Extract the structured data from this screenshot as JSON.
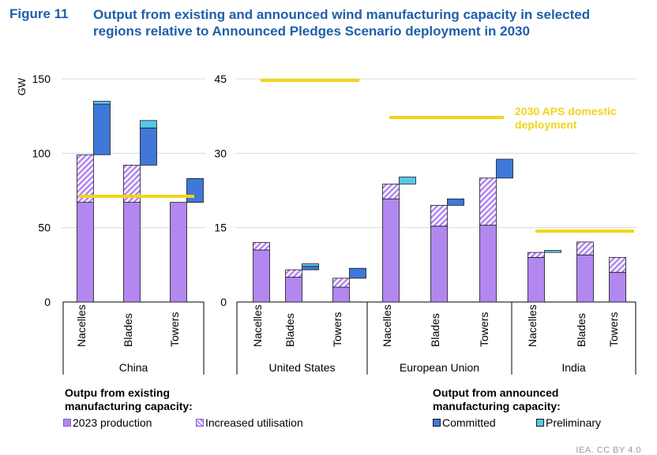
{
  "figure": {
    "label": "Figure 11",
    "title": "Output from existing and announced wind manufacturing capacity in selected regions relative to Announced Pledges Scenario deployment in 2030"
  },
  "colors": {
    "production": "#b287f0",
    "production_stroke": "#8a5cd0",
    "increased": "#b287f0",
    "committed": "#3f78d8",
    "preliminary": "#56c8ea",
    "aps": "#f2d418",
    "title": "#1f5faa"
  },
  "chart_data": [
    {
      "type": "bar",
      "stacked": "waterfall",
      "region": "China",
      "ylabel": "GW",
      "ylim": [
        0,
        150
      ],
      "yticks": [
        0,
        50,
        100,
        150
      ],
      "categories": [
        "Nacelles",
        "Blades",
        "Towers"
      ],
      "series": [
        {
          "name": "2023 production",
          "values": [
            67,
            67,
            67
          ]
        },
        {
          "name": "Increased utilisation",
          "values": [
            32,
            25,
            0
          ]
        },
        {
          "name": "Committed",
          "values": [
            34,
            25,
            16
          ]
        },
        {
          "name": "Preliminary",
          "values": [
            2,
            5,
            0
          ]
        }
      ],
      "aps_2030_deployment": 71
    },
    {
      "type": "bar",
      "stacked": "waterfall",
      "region": "United States",
      "ylim": [
        0,
        45
      ],
      "yticks": [
        0,
        15,
        30,
        45
      ],
      "categories": [
        "Nacelles",
        "Blades",
        "Towers"
      ],
      "series": [
        {
          "name": "2023 production",
          "values": [
            10.5,
            5,
            3
          ]
        },
        {
          "name": "Increased utilisation",
          "values": [
            1.5,
            1.5,
            1.8
          ]
        },
        {
          "name": "Committed",
          "values": [
            0,
            0.7,
            2
          ]
        },
        {
          "name": "Preliminary",
          "values": [
            0,
            0.5,
            0
          ]
        }
      ],
      "aps_2030_deployment": 44.7
    },
    {
      "type": "bar",
      "stacked": "waterfall",
      "region": "European Union",
      "ylim": [
        0,
        45
      ],
      "categories": [
        "Nacelles",
        "Blades",
        "Towers"
      ],
      "series": [
        {
          "name": "2023 production",
          "values": [
            20.8,
            15.3,
            15.5
          ]
        },
        {
          "name": "Increased utilisation",
          "values": [
            3,
            4.2,
            9.5
          ]
        },
        {
          "name": "Committed",
          "values": [
            0,
            1.3,
            3.8
          ]
        },
        {
          "name": "Preliminary",
          "values": [
            1.4,
            0,
            0
          ]
        }
      ],
      "aps_2030_deployment": 37.2,
      "annotation": "2030 APS domestic deployment"
    },
    {
      "type": "bar",
      "stacked": "waterfall",
      "region": "India",
      "ylim": [
        0,
        45
      ],
      "categories": [
        "Nacelles",
        "Blades",
        "Towers"
      ],
      "series": [
        {
          "name": "2023 production",
          "values": [
            9,
            9.5,
            6
          ]
        },
        {
          "name": "Increased utilisation",
          "values": [
            1,
            2.6,
            3
          ]
        },
        {
          "name": "Committed",
          "values": [
            0,
            0,
            0
          ]
        },
        {
          "name": "Preliminary",
          "values": [
            0.4,
            0,
            0
          ]
        }
      ],
      "aps_2030_deployment": 14.3
    }
  ],
  "legend": {
    "existing_heading": "Outpu from existing manufacturing capacity:",
    "announced_heading": "Output from announced manufacturing capacity:",
    "production": "2023 production",
    "increased": "Increased utilisation",
    "committed": "Committed",
    "preliminary": "Preliminary"
  },
  "source": "IEA. CC BY 4.0"
}
